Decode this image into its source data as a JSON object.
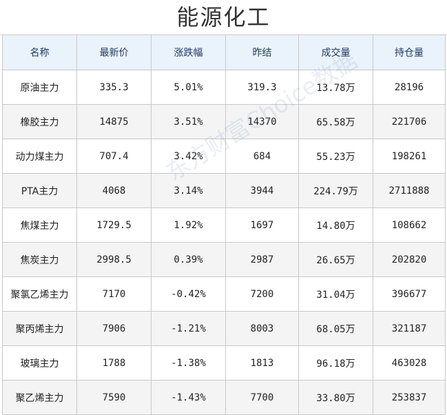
{
  "title": "能源化工",
  "watermark": "东方财富Choice数据",
  "colors": {
    "up": "#e01a1a",
    "down": "#1e8a1e",
    "header_bg": "#eaf2fb",
    "name_text": "#1f3a63"
  },
  "headers": [
    "名称",
    "最新价",
    "涨跌幅",
    "昨结",
    "成交量",
    "持仓量"
  ],
  "rows": [
    {
      "name": "原油主力",
      "latest": "335.3",
      "change": "5.01%",
      "prev": "319.3",
      "volume": "13.78万",
      "oi": "28196",
      "direction": "up"
    },
    {
      "name": "橡胶主力",
      "latest": "14875",
      "change": "3.51%",
      "prev": "14370",
      "volume": "65.58万",
      "oi": "221706",
      "direction": "up"
    },
    {
      "name": "动力煤主力",
      "latest": "707.4",
      "change": "3.42%",
      "prev": "684",
      "volume": "55.23万",
      "oi": "198261",
      "direction": "up"
    },
    {
      "name": "PTA主力",
      "latest": "4068",
      "change": "3.14%",
      "prev": "3944",
      "volume": "224.79万",
      "oi": "2711888",
      "direction": "up"
    },
    {
      "name": "焦煤主力",
      "latest": "1729.5",
      "change": "1.92%",
      "prev": "1697",
      "volume": "14.80万",
      "oi": "108662",
      "direction": "up"
    },
    {
      "name": "焦炭主力",
      "latest": "2998.5",
      "change": "0.39%",
      "prev": "2987",
      "volume": "26.65万",
      "oi": "202820",
      "direction": "up"
    },
    {
      "name": "聚氯乙烯主力",
      "latest": "7170",
      "change": "-0.42%",
      "prev": "7200",
      "volume": "31.04万",
      "oi": "396677",
      "direction": "down"
    },
    {
      "name": "聚丙烯主力",
      "latest": "7906",
      "change": "-1.21%",
      "prev": "8003",
      "volume": "68.05万",
      "oi": "321187",
      "direction": "down"
    },
    {
      "name": "玻璃主力",
      "latest": "1788",
      "change": "-1.38%",
      "prev": "1813",
      "volume": "96.18万",
      "oi": "463028",
      "direction": "down"
    },
    {
      "name": "聚乙烯主力",
      "latest": "7590",
      "change": "-1.43%",
      "prev": "7700",
      "volume": "33.80万",
      "oi": "253837",
      "direction": "down"
    }
  ]
}
